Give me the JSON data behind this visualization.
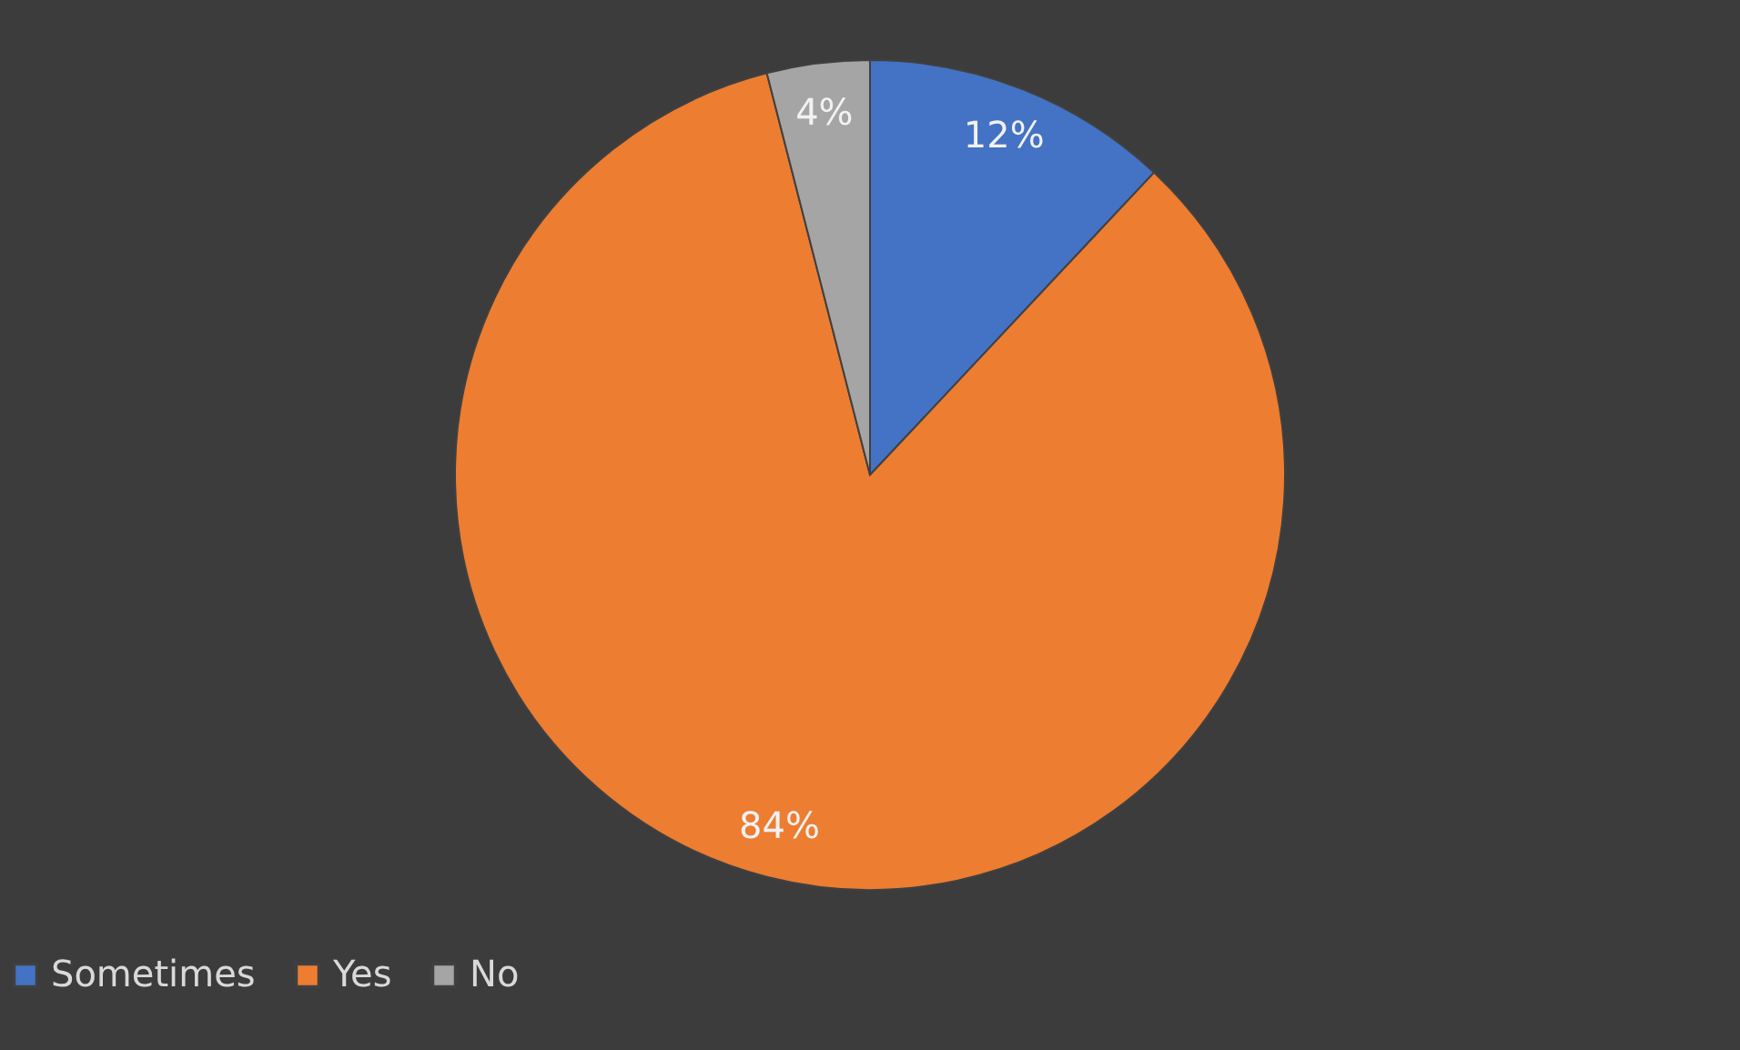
{
  "chart_data": {
    "type": "pie",
    "categories": [
      "Sometimes",
      "Yes",
      "No"
    ],
    "values": [
      12,
      84,
      4
    ],
    "colors": [
      "#4472c4",
      "#ed7d31",
      "#a5a5a5"
    ],
    "value_labels": [
      "12%",
      "84%",
      "4%"
    ],
    "legend": "bottom"
  }
}
